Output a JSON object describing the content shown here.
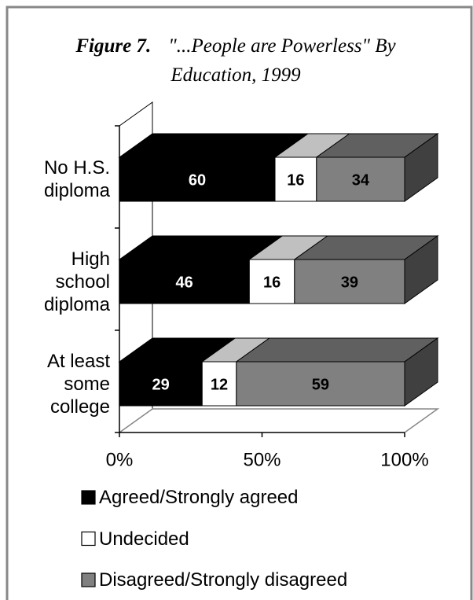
{
  "chart_data": {
    "type": "bar",
    "orientation": "horizontal",
    "stacking": "percent",
    "three_d": true,
    "title_label": "Figure 7.",
    "title": "\"...People are Powerless\" By Education, 1999",
    "categories": [
      "No H.S. diploma",
      "High school diploma",
      "At least some college"
    ],
    "series": [
      {
        "name": "Agreed/Strongly agreed",
        "color": "#000000",
        "top_color": "#000000",
        "label_color": "#ffffff",
        "values": [
          60,
          46,
          29
        ]
      },
      {
        "name": "Undecided",
        "color": "#ffffff",
        "top_color": "#c0c0c0",
        "label_color": "#000000",
        "values": [
          16,
          16,
          12
        ]
      },
      {
        "name": "Disagreed/Strongly disagreed",
        "color": "#808080",
        "top_color": "#606060",
        "label_color": "#000000",
        "values": [
          34,
          39,
          59
        ]
      }
    ],
    "xlim": [
      0,
      100
    ],
    "xticks": [
      {
        "value": 0,
        "label": "0%"
      },
      {
        "value": 50,
        "label": "50%"
      },
      {
        "value": 100,
        "label": "100%"
      }
    ],
    "legend": "bottom"
  }
}
